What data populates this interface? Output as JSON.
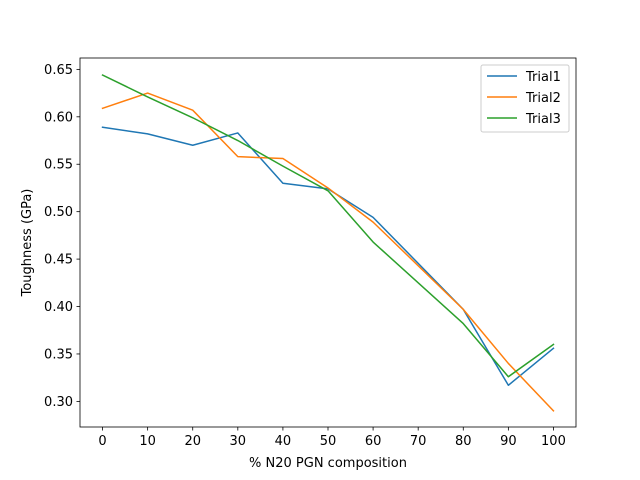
{
  "chart_data": {
    "type": "line",
    "xlabel": "% N20 PGN composition",
    "ylabel": "Toughness (GPa)",
    "xlim": [
      -5,
      105
    ],
    "ylim": [
      0.273,
      0.662
    ],
    "xticks": [
      0,
      10,
      20,
      30,
      40,
      50,
      60,
      70,
      80,
      90,
      100
    ],
    "xtick_labels": [
      "0",
      "10",
      "20",
      "30",
      "40",
      "50",
      "60",
      "70",
      "80",
      "90",
      "100"
    ],
    "yticks": [
      0.3,
      0.35,
      0.4,
      0.45,
      0.5,
      0.55,
      0.6,
      0.65
    ],
    "ytick_labels": [
      "0.30",
      "0.35",
      "0.40",
      "0.45",
      "0.50",
      "0.55",
      "0.60",
      "0.65"
    ],
    "x": [
      0,
      10,
      20,
      30,
      40,
      50,
      60,
      80,
      90,
      100
    ],
    "legend": "top-right",
    "grid": false,
    "series": [
      {
        "name": "Trial1",
        "color": "#1f77b4",
        "values": [
          0.589,
          0.582,
          0.57,
          0.583,
          0.53,
          0.524,
          0.494,
          0.397,
          0.317,
          0.356
        ]
      },
      {
        "name": "Trial2",
        "color": "#ff7f0e",
        "values": [
          0.609,
          0.625,
          0.607,
          0.558,
          0.556,
          0.525,
          0.489,
          0.397,
          0.34,
          0.29
        ]
      },
      {
        "name": "Trial3",
        "color": "#2ca02c",
        "values": [
          0.644,
          0.621,
          0.599,
          0.575,
          0.548,
          0.522,
          0.468,
          0.382,
          0.326,
          0.36
        ]
      }
    ]
  }
}
